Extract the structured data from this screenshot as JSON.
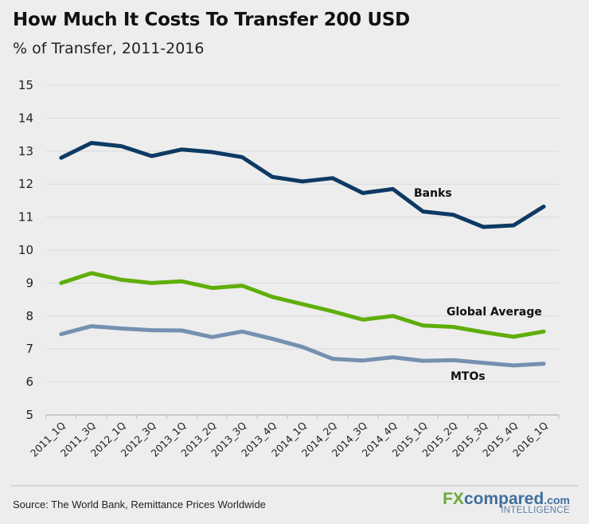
{
  "header": {
    "title": "How Much It Costs To Transfer 200 USD",
    "subtitle": "% of Transfer, 2011-2016"
  },
  "footer": {
    "source": "Source: The World Bank, Remittance Prices Worldwide",
    "logo": {
      "fx": "FX",
      "compared": "compared",
      "com": ".com",
      "tagline": "INTELLIGENCE"
    }
  },
  "colors": {
    "banks": "#0d3a63",
    "global_average": "#5fae0a",
    "mtos": "#7590b0",
    "gridline": "#d9d9d9",
    "background": "#ededed"
  },
  "chart_data": {
    "type": "line",
    "title": "How Much It Costs To Transfer 200 USD",
    "subtitle": "% of Transfer, 2011-2016",
    "xlabel": "",
    "ylabel": "",
    "ylim": [
      5,
      15
    ],
    "yticks": [
      5,
      6,
      7,
      8,
      9,
      10,
      11,
      12,
      13,
      14,
      15
    ],
    "grid": true,
    "legend": "inline-labels",
    "categories": [
      "2011_1Q",
      "2011_3Q",
      "2012_1Q",
      "2012_3Q",
      "2013_1Q",
      "2013_2Q",
      "2013_3Q",
      "2013_4Q",
      "2014_1Q",
      "2014_2Q",
      "2014_3Q",
      "2014_4Q",
      "2015_1Q",
      "2015_2Q",
      "2015_3Q",
      "2015_4Q",
      "2016_1Q"
    ],
    "series": [
      {
        "name": "Banks",
        "key": "banks",
        "values": [
          12.8,
          13.25,
          13.15,
          12.85,
          13.05,
          12.97,
          12.82,
          12.22,
          12.08,
          12.18,
          11.73,
          11.85,
          11.17,
          11.07,
          10.7,
          10.75,
          11.32
        ]
      },
      {
        "name": "Global Average",
        "key": "global_average",
        "values": [
          9.0,
          9.3,
          9.1,
          9.0,
          9.05,
          8.85,
          8.92,
          8.58,
          8.36,
          8.14,
          7.89,
          8.0,
          7.71,
          7.67,
          7.51,
          7.37,
          7.53
        ]
      },
      {
        "name": "MTOs",
        "key": "mtos",
        "values": [
          7.45,
          7.69,
          7.62,
          7.57,
          7.56,
          7.36,
          7.53,
          7.31,
          7.06,
          6.7,
          6.65,
          6.75,
          6.64,
          6.66,
          6.58,
          6.5,
          6.55
        ]
      }
    ]
  }
}
